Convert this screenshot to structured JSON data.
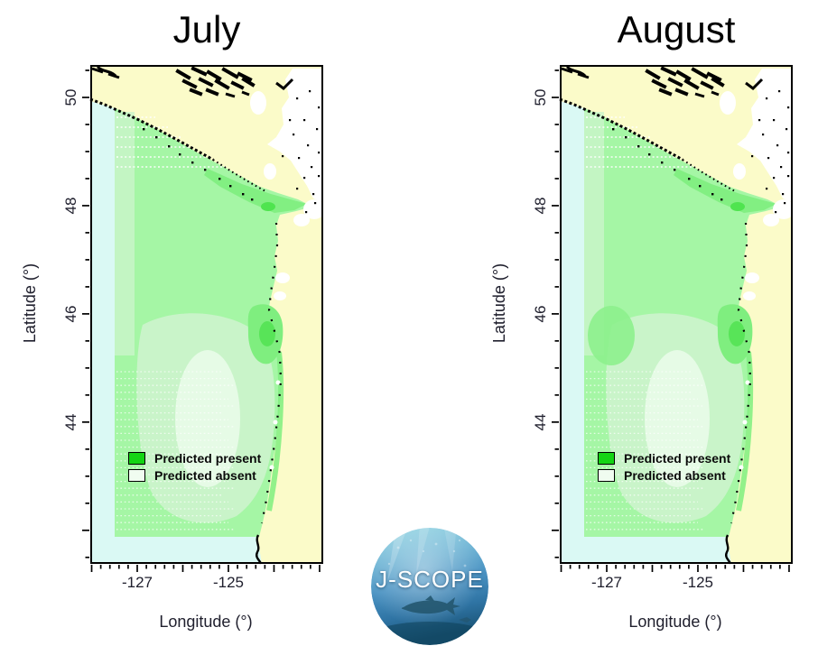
{
  "figure": {
    "type": "map",
    "panels": [
      {
        "title": "July"
      },
      {
        "title": "August"
      }
    ],
    "x_axis": {
      "label": "Longitude (°)",
      "tick_labels": [
        "-127",
        "-125"
      ],
      "range": [
        -128.03,
        -122.92
      ],
      "minor_step": 0.2,
      "major_step": 1
    },
    "y_axis": {
      "label": "Latitude (°)",
      "tick_labels": [
        "50",
        "48",
        "46",
        "44"
      ],
      "range": [
        41.38,
        50.6
      ],
      "minor_step": 0.5,
      "major_step": 2
    },
    "legend": {
      "items": [
        {
          "label": "Predicted present",
          "color": "#14d414"
        },
        {
          "label": "Predicted absent",
          "color": "#f0fcf0"
        }
      ]
    },
    "map_colors": {
      "predicted_present_ocean": "#a5f6a5",
      "predicted_absent_water": "#ffffff",
      "outside_domain_water": "#daf9f4",
      "land": "#fbfbc9",
      "coastline": "#000000"
    },
    "logo": {
      "text": "J-SCOPE"
    }
  }
}
